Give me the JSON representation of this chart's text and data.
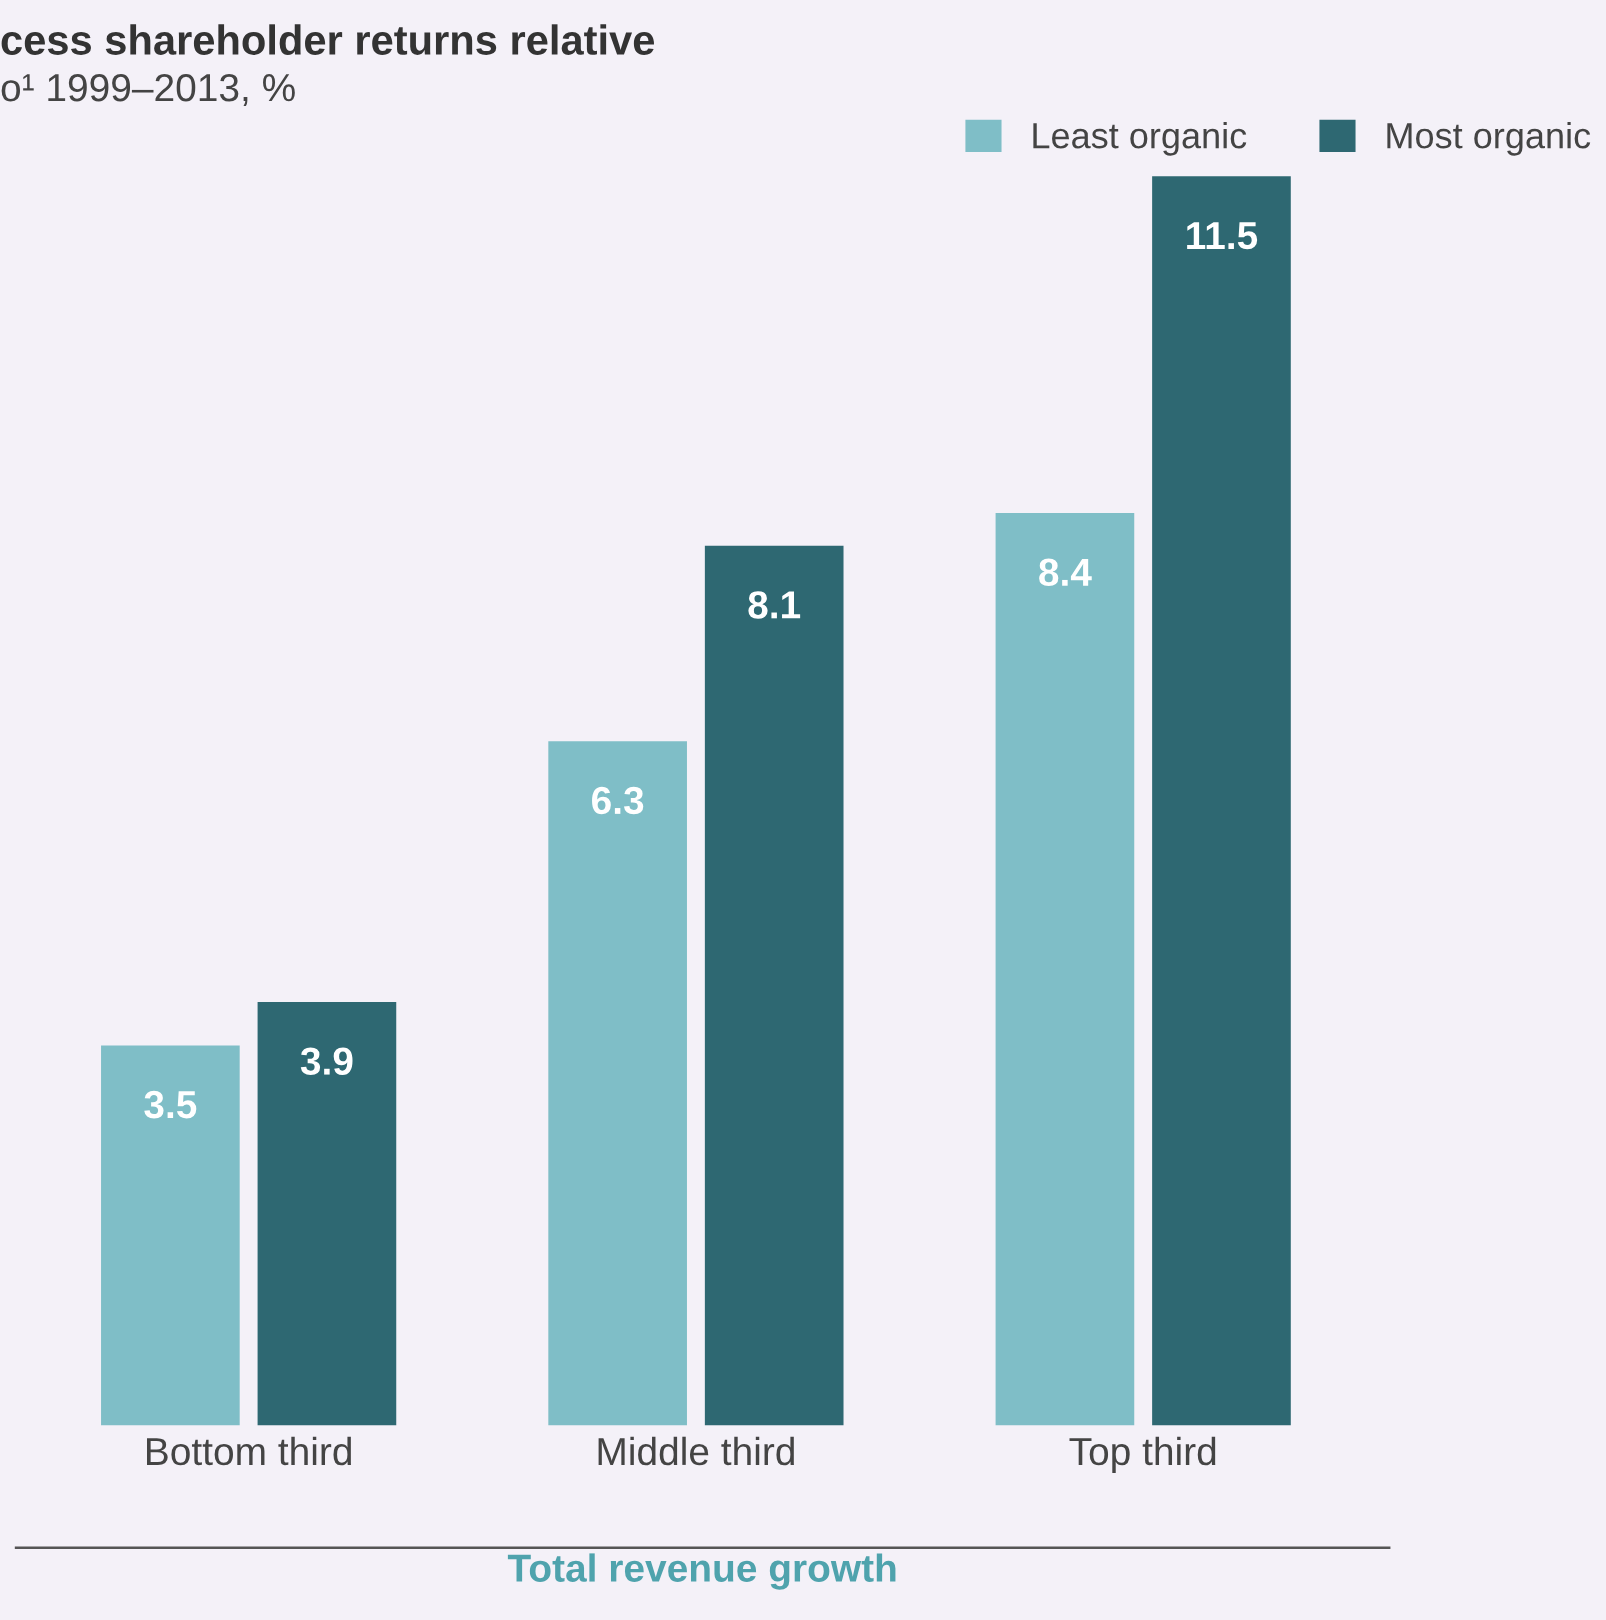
{
  "chart_data": {
    "type": "bar",
    "title": "cess shareholder returns relative",
    "subtitle": "o¹ 1999–2013, %",
    "xlabel": "Total revenue growth",
    "categories": [
      "Bottom third",
      "Middle third",
      "Top third"
    ],
    "series": [
      {
        "name": "Least organic",
        "color": "#7fbec7",
        "values": [
          3.5,
          6.3,
          8.4
        ]
      },
      {
        "name": "Most organic",
        "color": "#2e6872",
        "values": [
          3.9,
          8.1,
          11.5
        ]
      }
    ],
    "data_labels": true,
    "legend": "top right",
    "grid": false
  }
}
